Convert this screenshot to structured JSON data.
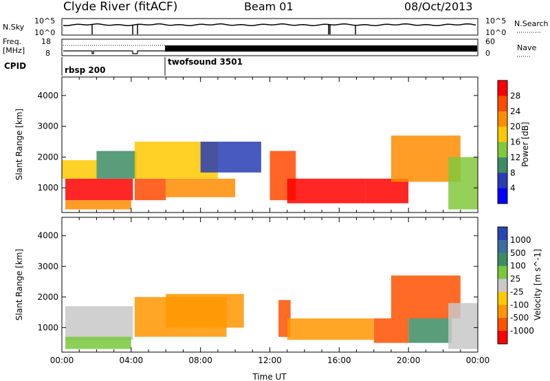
{
  "header": {
    "site": "Clyde River (fitACF)",
    "beam": "Beam 01",
    "date": "08/Oct/2013"
  },
  "noise_panel": {
    "left_label": "N.Sky",
    "left_ticks": [
      "10^5",
      "10^0"
    ],
    "right_ticks": [
      "10^5",
      "10^0"
    ],
    "right_label": "N.Search"
  },
  "freq_panel": {
    "left_label_top": "Freq.",
    "left_label_bottom": "[MHz]",
    "left_ticks": [
      "18",
      "8"
    ],
    "right_ticks": [
      "60",
      "0"
    ],
    "right_label": "Nave"
  },
  "cpid": {
    "label": "CPID",
    "segments": [
      {
        "name": "rbsp 200",
        "start_hour": 0
      },
      {
        "name": "twofsound 3501",
        "start_hour": 6
      }
    ]
  },
  "chart_data": [
    {
      "type": "heatmap",
      "parameter": "power",
      "xlabel": "",
      "ylabel": "Slant Range [km]",
      "xlim": [
        0,
        24
      ],
      "ylim": [
        200,
        4600
      ],
      "y_ticks": [
        1000,
        2000,
        3000,
        4000
      ],
      "colorbar": {
        "label": "Power [dB]",
        "tick_labels": [
          "28",
          "24",
          "20",
          "16",
          "12",
          "8",
          "4"
        ],
        "colors": [
          "#ff0000",
          "#ff4a00",
          "#ff8c00",
          "#ffc800",
          "#82c83c",
          "#3c8c64",
          "#283cb4",
          "#0000ff"
        ]
      },
      "regions": [
        {
          "x": [
            0.2,
            4.1
          ],
          "y": [
            600,
            1300
          ],
          "level": 0
        },
        {
          "x": [
            0.0,
            2.0
          ],
          "y": [
            1300,
            1900
          ],
          "level": 3
        },
        {
          "x": [
            2.0,
            4.3
          ],
          "y": [
            1300,
            2200
          ],
          "level": 5
        },
        {
          "x": [
            0.2,
            4.0
          ],
          "y": [
            300,
            600
          ],
          "level": 2
        },
        {
          "x": [
            4.2,
            6.0
          ],
          "y": [
            600,
            1300
          ],
          "level": 1
        },
        {
          "x": [
            4.2,
            9.0
          ],
          "y": [
            1300,
            2500
          ],
          "level": 3
        },
        {
          "x": [
            6.0,
            10.0
          ],
          "y": [
            700,
            1300
          ],
          "level": 2
        },
        {
          "x": [
            8.0,
            11.5
          ],
          "y": [
            1500,
            2500
          ],
          "level": 6
        },
        {
          "x": [
            12.0,
            13.5
          ],
          "y": [
            600,
            2200
          ],
          "level": 1
        },
        {
          "x": [
            13.0,
            17.5
          ],
          "y": [
            500,
            1300
          ],
          "level": 0
        },
        {
          "x": [
            17.5,
            20.0
          ],
          "y": [
            500,
            1300
          ],
          "level": 0
        },
        {
          "x": [
            19.0,
            23.0
          ],
          "y": [
            1200,
            2700
          ],
          "level": 2
        },
        {
          "x": [
            22.3,
            24.0
          ],
          "y": [
            300,
            2000
          ],
          "level": 4
        }
      ]
    },
    {
      "type": "heatmap",
      "parameter": "velocity",
      "xlabel": "Time UT",
      "ylabel": "Slant Range [km]",
      "xlim": [
        0,
        24
      ],
      "ylim": [
        200,
        4600
      ],
      "y_ticks": [
        1000,
        2000,
        3000,
        4000
      ],
      "x_tick_labels": [
        "00:00",
        "04:00",
        "08:00",
        "12:00",
        "16:00",
        "20:00",
        "00:00"
      ],
      "colorbar": {
        "label": "Velocity [m s^-1]",
        "tick_labels": [
          "1000",
          "500",
          "100",
          "25",
          "-25",
          "-100",
          "-500",
          "-1000"
        ],
        "colors": [
          "#2846b4",
          "#3c6ea0",
          "#3c8c64",
          "#78c83c",
          "#c8c8c8",
          "#ffc800",
          "#ff9600",
          "#ff5000",
          "#ff0000"
        ]
      },
      "regions": [
        {
          "x": [
            0.2,
            4.1
          ],
          "y": [
            600,
            1700
          ],
          "level": 4
        },
        {
          "x": [
            0.2,
            4.0
          ],
          "y": [
            300,
            700
          ],
          "level": 3
        },
        {
          "x": [
            4.2,
            9.5
          ],
          "y": [
            700,
            2000
          ],
          "level": 6
        },
        {
          "x": [
            6.0,
            10.5
          ],
          "y": [
            1000,
            2100
          ],
          "level": 6
        },
        {
          "x": [
            12.5,
            13.2
          ],
          "y": [
            700,
            1900
          ],
          "level": 7
        },
        {
          "x": [
            13.0,
            18.0
          ],
          "y": [
            600,
            1300
          ],
          "level": 6
        },
        {
          "x": [
            18.0,
            20.0
          ],
          "y": [
            500,
            1300
          ],
          "level": 7
        },
        {
          "x": [
            20.0,
            22.5
          ],
          "y": [
            500,
            1300
          ],
          "level": 2
        },
        {
          "x": [
            19.0,
            23.0
          ],
          "y": [
            1300,
            2700
          ],
          "level": 7
        },
        {
          "x": [
            22.3,
            24.0
          ],
          "y": [
            300,
            1800
          ],
          "level": 4
        }
      ]
    }
  ]
}
